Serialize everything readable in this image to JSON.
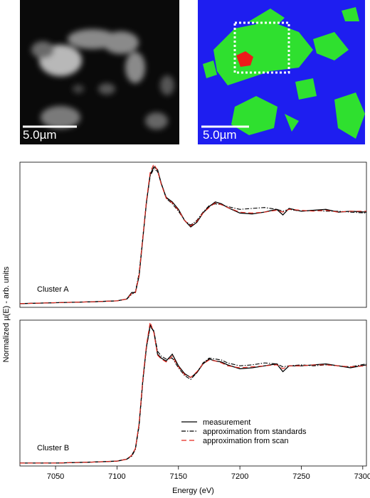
{
  "images": {
    "left": {
      "scalebar": "5.0µm"
    },
    "right": {
      "scalebar": "5.0µm"
    }
  },
  "figure": {
    "ylabel": "Normalized µ(E) - arb. units"
  },
  "chart_data": [
    {
      "type": "line",
      "annotation": "Cluster A",
      "x": [
        7021,
        7050,
        7080,
        7100,
        7108,
        7112,
        7115,
        7118,
        7121,
        7124,
        7127,
        7130,
        7133,
        7136,
        7140,
        7145,
        7150,
        7155,
        7160,
        7165,
        7170,
        7175,
        7180,
        7185,
        7190,
        7200,
        7210,
        7220,
        7230,
        7235,
        7240,
        7250,
        7260,
        7270,
        7280,
        7290,
        7303
      ],
      "xlim": [
        7021,
        7303
      ],
      "ylim": [
        -0.04,
        1.53
      ],
      "series": [
        {
          "name": "measurement",
          "color": "#000000",
          "style": "solid",
          "values": [
            0,
            0.01,
            0.02,
            0.03,
            0.05,
            0.12,
            0.12,
            0.3,
            0.7,
            1.1,
            1.4,
            1.48,
            1.45,
            1.3,
            1.15,
            1.1,
            1.02,
            0.9,
            0.83,
            0.88,
            0.98,
            1.05,
            1.1,
            1.08,
            1.04,
            0.98,
            0.97,
            0.99,
            1.02,
            0.96,
            1.03,
            1.0,
            1.01,
            1.02,
            0.99,
            1.0,
            0.99
          ]
        },
        {
          "name": "approximation from standards",
          "color": "#000000",
          "style": "dashdot",
          "values": [
            0,
            0.01,
            0.02,
            0.03,
            0.05,
            0.1,
            0.13,
            0.33,
            0.72,
            1.1,
            1.38,
            1.46,
            1.43,
            1.3,
            1.14,
            1.08,
            1.0,
            0.9,
            0.85,
            0.9,
            0.99,
            1.06,
            1.08,
            1.07,
            1.05,
            1.02,
            1.03,
            1.04,
            1.02,
            1.0,
            1.02,
            1.0,
            1.01,
            1.0,
            1.0,
            0.99,
            0.98
          ]
        },
        {
          "name": "approximation from scan",
          "color": "#e8281e",
          "style": "dashed",
          "values": [
            0,
            0.01,
            0.02,
            0.03,
            0.05,
            0.11,
            0.12,
            0.31,
            0.71,
            1.12,
            1.42,
            1.51,
            1.44,
            1.29,
            1.14,
            1.09,
            1.01,
            0.9,
            0.84,
            0.89,
            0.98,
            1.04,
            1.09,
            1.07,
            1.04,
            0.99,
            0.98,
            0.99,
            1.01,
            0.99,
            1.02,
            1.01,
            1.0,
            1.01,
            0.99,
            1.0,
            1.0
          ]
        }
      ]
    },
    {
      "type": "line",
      "annotation": "Cluster B",
      "xlabel": "Energy (eV)",
      "x": [
        7021,
        7050,
        7080,
        7100,
        7108,
        7112,
        7115,
        7118,
        7121,
        7124,
        7127,
        7130,
        7133,
        7136,
        7140,
        7145,
        7150,
        7155,
        7160,
        7165,
        7170,
        7175,
        7180,
        7185,
        7190,
        7200,
        7210,
        7220,
        7230,
        7235,
        7240,
        7250,
        7260,
        7270,
        7280,
        7290,
        7303
      ],
      "xlim": [
        7021,
        7303
      ],
      "ylim": [
        -0.03,
        1.47
      ],
      "xticks": [
        7050,
        7100,
        7150,
        7200,
        7250,
        7300
      ],
      "legend": "lower center",
      "series": [
        {
          "name": "measurement",
          "color": "#000000",
          "style": "solid",
          "values": [
            0,
            0,
            0.01,
            0.02,
            0.04,
            0.08,
            0.15,
            0.4,
            0.85,
            1.2,
            1.42,
            1.35,
            1.12,
            1.08,
            1.05,
            1.12,
            1.0,
            0.92,
            0.88,
            0.93,
            1.02,
            1.07,
            1.05,
            1.04,
            1.01,
            0.97,
            0.98,
            1.0,
            1.02,
            0.94,
            1.0,
            1.0,
            1.01,
            1.02,
            1.0,
            0.98,
            1.01
          ]
        },
        {
          "name": "approximation from standards",
          "color": "#000000",
          "style": "dashdot",
          "values": [
            0,
            0,
            0.01,
            0.02,
            0.04,
            0.07,
            0.14,
            0.38,
            0.83,
            1.19,
            1.4,
            1.36,
            1.15,
            1.1,
            1.07,
            1.08,
            0.98,
            0.9,
            0.86,
            0.93,
            1.03,
            1.08,
            1.07,
            1.06,
            1.03,
            1.0,
            1.01,
            1.03,
            1.02,
            0.99,
            1.0,
            1.01,
            1.0,
            1.01,
            1.0,
            0.99,
            1.02
          ]
        },
        {
          "name": "approximation from scan",
          "color": "#e8281e",
          "style": "dashed",
          "values": [
            0,
            0,
            0.01,
            0.02,
            0.04,
            0.08,
            0.15,
            0.41,
            0.86,
            1.22,
            1.45,
            1.34,
            1.11,
            1.07,
            1.04,
            1.1,
            0.99,
            0.91,
            0.88,
            0.94,
            1.02,
            1.06,
            1.05,
            1.03,
            1.0,
            0.98,
            0.99,
            1.0,
            1.01,
            0.97,
            1.0,
            1.0,
            1.01,
            1.01,
            1.0,
            0.99,
            1.0
          ]
        }
      ]
    }
  ]
}
